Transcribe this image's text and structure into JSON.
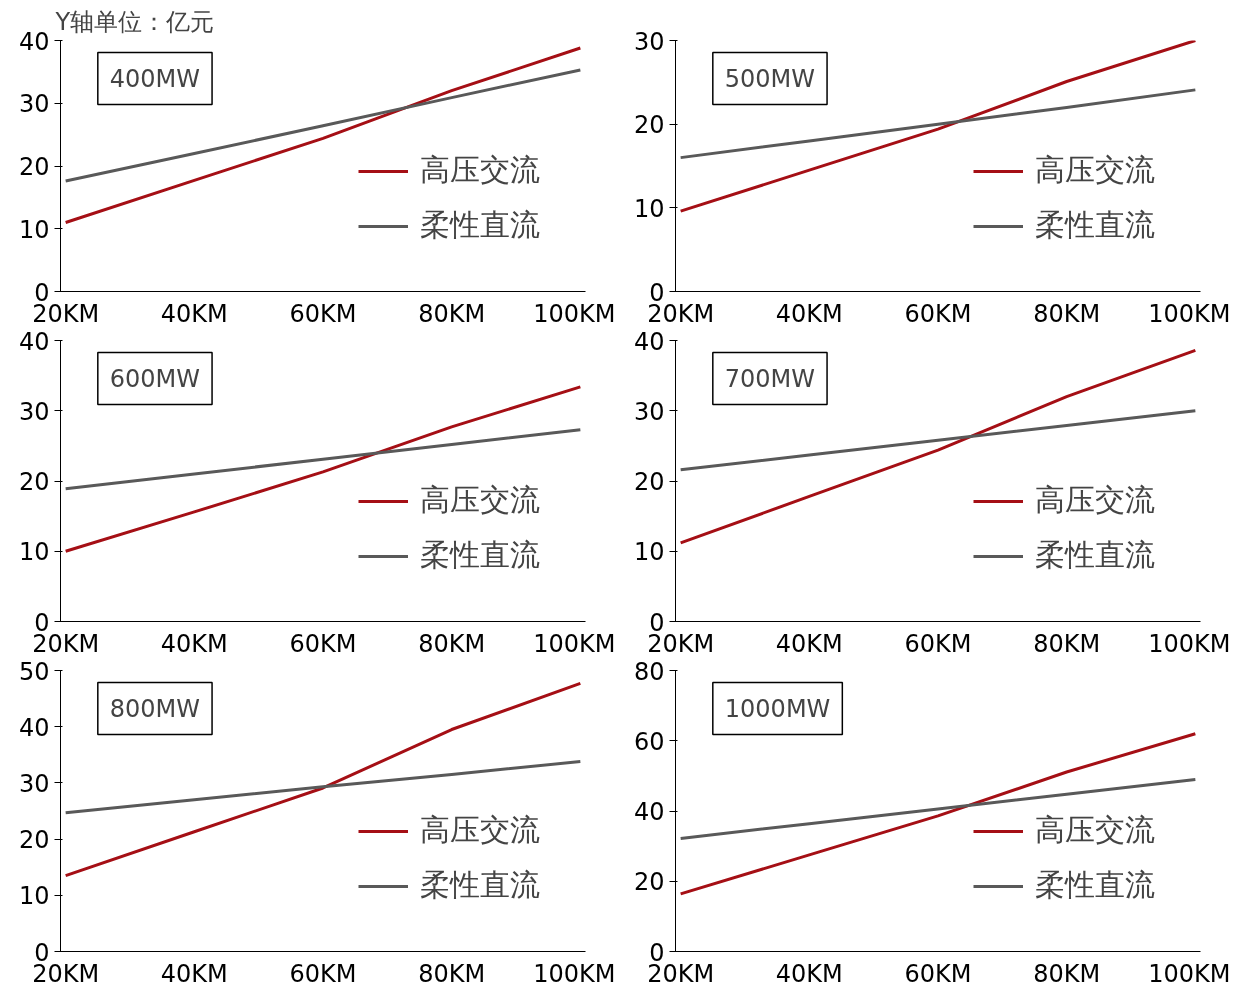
{
  "chart_data": [
    {
      "type": "line",
      "title": "400MW",
      "annotations": [
        "Y轴单位：亿元"
      ],
      "categories": [
        "20KM",
        "40KM",
        "60KM",
        "80KM",
        "100KM"
      ],
      "ylim": [
        0,
        40
      ],
      "yticks": [
        0,
        10,
        20,
        30,
        40
      ],
      "grid": false,
      "legend": "right",
      "marker": "none",
      "series": [
        {
          "name": "高压交流",
          "color": "#a50f15",
          "values": [
            11.0,
            17.7,
            24.4,
            32.0,
            38.8
          ]
        },
        {
          "name": "柔性直流",
          "color": "#595959",
          "values": [
            17.6,
            22.0,
            26.4,
            30.9,
            35.3
          ]
        }
      ]
    },
    {
      "type": "line",
      "title": "500MW",
      "categories": [
        "20KM",
        "40KM",
        "60KM",
        "80KM",
        "100KM"
      ],
      "ylim": [
        0,
        30
      ],
      "yticks": [
        0,
        10,
        20,
        30
      ],
      "grid": false,
      "legend": "right",
      "marker": "none",
      "series": [
        {
          "name": "高压交流",
          "color": "#a50f15",
          "values": [
            9.6,
            14.5,
            19.4,
            25.1,
            30.0
          ]
        },
        {
          "name": "柔性直流",
          "color": "#595959",
          "values": [
            16.0,
            18.0,
            20.0,
            22.0,
            24.1
          ]
        }
      ]
    },
    {
      "type": "line",
      "title": "600MW",
      "categories": [
        "20KM",
        "40KM",
        "60KM",
        "80KM",
        "100KM"
      ],
      "ylim": [
        0,
        40
      ],
      "yticks": [
        0,
        10,
        20,
        30,
        40
      ],
      "grid": false,
      "legend": "right",
      "marker": "none",
      "series": [
        {
          "name": "高压交流",
          "color": "#a50f15",
          "values": [
            10.0,
            15.6,
            21.3,
            27.7,
            33.4
          ]
        },
        {
          "name": "柔性直流",
          "color": "#595959",
          "values": [
            18.9,
            21.0,
            23.1,
            25.2,
            27.3
          ]
        }
      ]
    },
    {
      "type": "line",
      "title": "700MW",
      "categories": [
        "20KM",
        "40KM",
        "60KM",
        "80KM",
        "100KM"
      ],
      "ylim": [
        0,
        40
      ],
      "yticks": [
        0,
        10,
        20,
        30,
        40
      ],
      "grid": false,
      "legend": "right",
      "marker": "none",
      "series": [
        {
          "name": "高压交流",
          "color": "#a50f15",
          "values": [
            11.2,
            17.8,
            24.4,
            32.0,
            38.6
          ]
        },
        {
          "name": "柔性直流",
          "color": "#595959",
          "values": [
            21.6,
            23.7,
            25.8,
            27.9,
            30.0
          ]
        }
      ]
    },
    {
      "type": "line",
      "title": "800MW",
      "categories": [
        "20KM",
        "40KM",
        "60KM",
        "80KM",
        "100KM"
      ],
      "ylim": [
        0,
        50
      ],
      "yticks": [
        0,
        10,
        20,
        30,
        40,
        50
      ],
      "grid": false,
      "legend": "right",
      "marker": "none",
      "series": [
        {
          "name": "高压交流",
          "color": "#a50f15",
          "values": [
            13.5,
            21.3,
            29.1,
            39.5,
            47.7
          ]
        },
        {
          "name": "柔性直流",
          "color": "#595959",
          "values": [
            24.7,
            27.0,
            29.3,
            31.5,
            33.8
          ]
        }
      ]
    },
    {
      "type": "line",
      "title": "1000MW",
      "categories": [
        "20KM",
        "40KM",
        "60KM",
        "80KM",
        "100KM"
      ],
      "ylim": [
        0,
        80
      ],
      "yticks": [
        0,
        20,
        40,
        60,
        80
      ],
      "grid": false,
      "legend": "right",
      "marker": "none",
      "series": [
        {
          "name": "高压交流",
          "color": "#a50f15",
          "values": [
            16.4,
            27.5,
            38.6,
            51.1,
            62.0
          ]
        },
        {
          "name": "柔性直流",
          "color": "#595959",
          "values": [
            32.2,
            36.4,
            40.6,
            44.8,
            49.0
          ]
        }
      ]
    }
  ]
}
